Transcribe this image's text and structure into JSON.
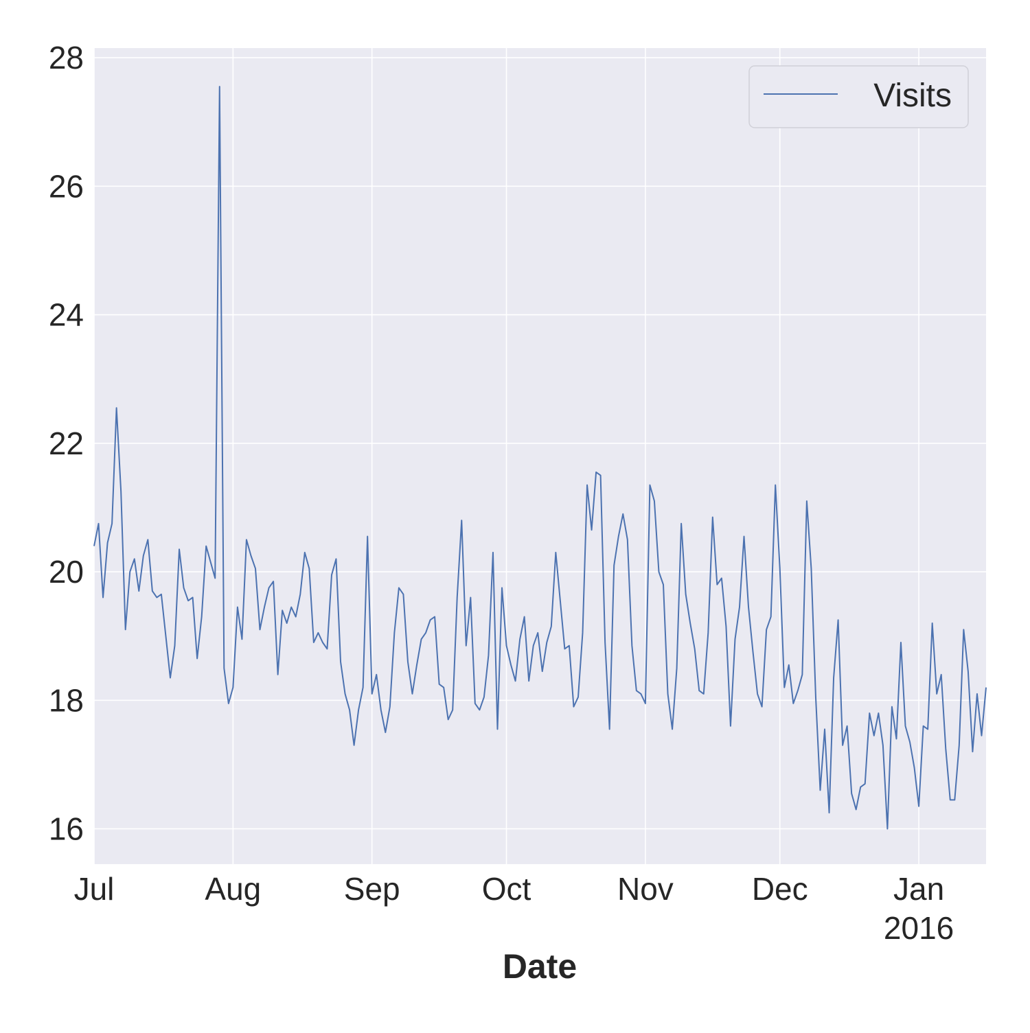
{
  "chart_data": {
    "type": "line",
    "title": "",
    "xlabel": "Date",
    "ylabel": "",
    "x_start": "2015-07-01",
    "x_end": "2016-01-16",
    "ylim": [
      15.45,
      28.15
    ],
    "yticks": [
      16,
      18,
      20,
      22,
      24,
      26,
      28
    ],
    "xticks": [
      {
        "date": "2015-07-01",
        "label": "Jul",
        "sublabel": ""
      },
      {
        "date": "2015-08-01",
        "label": "Aug",
        "sublabel": ""
      },
      {
        "date": "2015-09-01",
        "label": "Sep",
        "sublabel": ""
      },
      {
        "date": "2015-10-01",
        "label": "Oct",
        "sublabel": ""
      },
      {
        "date": "2015-11-01",
        "label": "Nov",
        "sublabel": ""
      },
      {
        "date": "2015-12-01",
        "label": "Dec",
        "sublabel": ""
      },
      {
        "date": "2016-01-01",
        "label": "Jan",
        "sublabel": "2016"
      }
    ],
    "grid": true,
    "background": "#eaeaf2",
    "legend": {
      "position": "top-right",
      "entries": [
        "Visits"
      ]
    },
    "series": [
      {
        "name": "Visits",
        "color": "#4c72b0",
        "start": "2015-07-01",
        "values": [
          20.4,
          20.75,
          19.6,
          20.45,
          20.75,
          22.55,
          21.25,
          19.1,
          20.0,
          20.2,
          19.7,
          20.25,
          20.5,
          19.7,
          19.6,
          19.65,
          19.0,
          18.35,
          18.85,
          20.35,
          19.75,
          19.55,
          19.6,
          18.65,
          19.3,
          20.4,
          20.15,
          19.9,
          27.55,
          18.5,
          17.95,
          18.2,
          19.45,
          18.95,
          20.5,
          20.25,
          20.05,
          19.1,
          19.45,
          19.75,
          19.85,
          18.4,
          19.4,
          19.2,
          19.45,
          19.3,
          19.65,
          20.3,
          20.05,
          18.9,
          19.05,
          18.9,
          18.8,
          19.95,
          20.2,
          18.6,
          18.1,
          17.85,
          17.3,
          17.85,
          18.2,
          20.55,
          18.1,
          18.4,
          17.85,
          17.5,
          17.9,
          19.05,
          19.75,
          19.65,
          18.6,
          18.1,
          18.55,
          18.95,
          19.05,
          19.25,
          19.3,
          18.25,
          18.2,
          17.7,
          17.85,
          19.6,
          20.8,
          18.85,
          19.6,
          17.95,
          17.85,
          18.05,
          18.7,
          20.3,
          17.55,
          19.75,
          18.85,
          18.55,
          18.3,
          18.95,
          19.3,
          18.3,
          18.85,
          19.05,
          18.45,
          18.9,
          19.15,
          20.3,
          19.55,
          18.8,
          18.85,
          17.9,
          18.05,
          19.05,
          21.35,
          20.65,
          21.55,
          21.5,
          18.9,
          17.55,
          20.1,
          20.55,
          20.9,
          20.5,
          18.85,
          18.15,
          18.1,
          17.95,
          21.35,
          21.1,
          20.0,
          19.8,
          18.1,
          17.55,
          18.5,
          20.75,
          19.65,
          19.2,
          18.8,
          18.15,
          18.1,
          19.05,
          20.85,
          19.8,
          19.9,
          19.15,
          17.6,
          18.95,
          19.45,
          20.55,
          19.45,
          18.75,
          18.1,
          17.9,
          19.1,
          19.3,
          21.35,
          20.05,
          18.2,
          18.55,
          17.95,
          18.15,
          18.4,
          21.1,
          20.05,
          18.05,
          16.6,
          17.55,
          16.25,
          18.35,
          19.25,
          17.3,
          17.6,
          16.55,
          16.3,
          16.65,
          16.7,
          17.8,
          17.45,
          17.8,
          17.3,
          16.0,
          17.9,
          17.4,
          18.9,
          17.6,
          17.35,
          16.95,
          16.35,
          17.6,
          17.55,
          19.2,
          18.1,
          18.4,
          17.25,
          16.45,
          16.45,
          17.3,
          19.1,
          18.45,
          17.2,
          18.1,
          17.45,
          18.2
        ]
      }
    ]
  }
}
